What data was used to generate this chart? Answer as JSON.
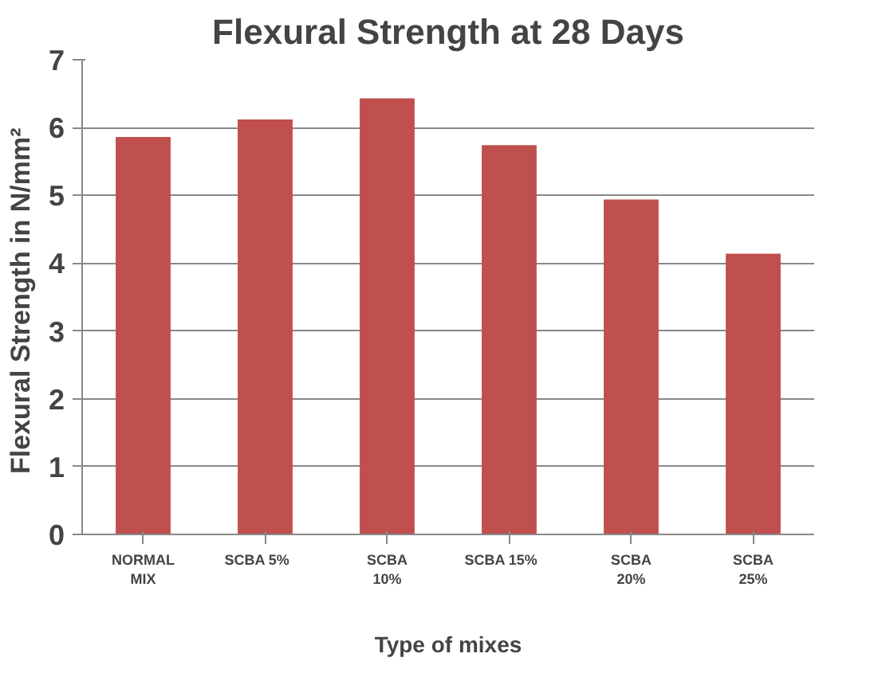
{
  "chart_data": {
    "type": "bar",
    "title": "Flexural Strength at 28 Days",
    "xlabel": "Type of mixes",
    "ylabel": "Flexural Strength in  N/mm²",
    "categories": [
      "NORMAL\nMIX",
      "SCBA     5%",
      "SCBA\n10%",
      "SCBA     15%",
      "SCBA\n20%",
      "SCBA\n25%"
    ],
    "values": [
      5.86,
      6.12,
      6.43,
      5.74,
      4.94,
      4.14
    ],
    "color": "#c0504d",
    "ylim": [
      0,
      7
    ],
    "yticks": [
      0,
      1,
      2,
      3,
      4,
      5,
      6,
      7
    ],
    "grid": "y"
  }
}
